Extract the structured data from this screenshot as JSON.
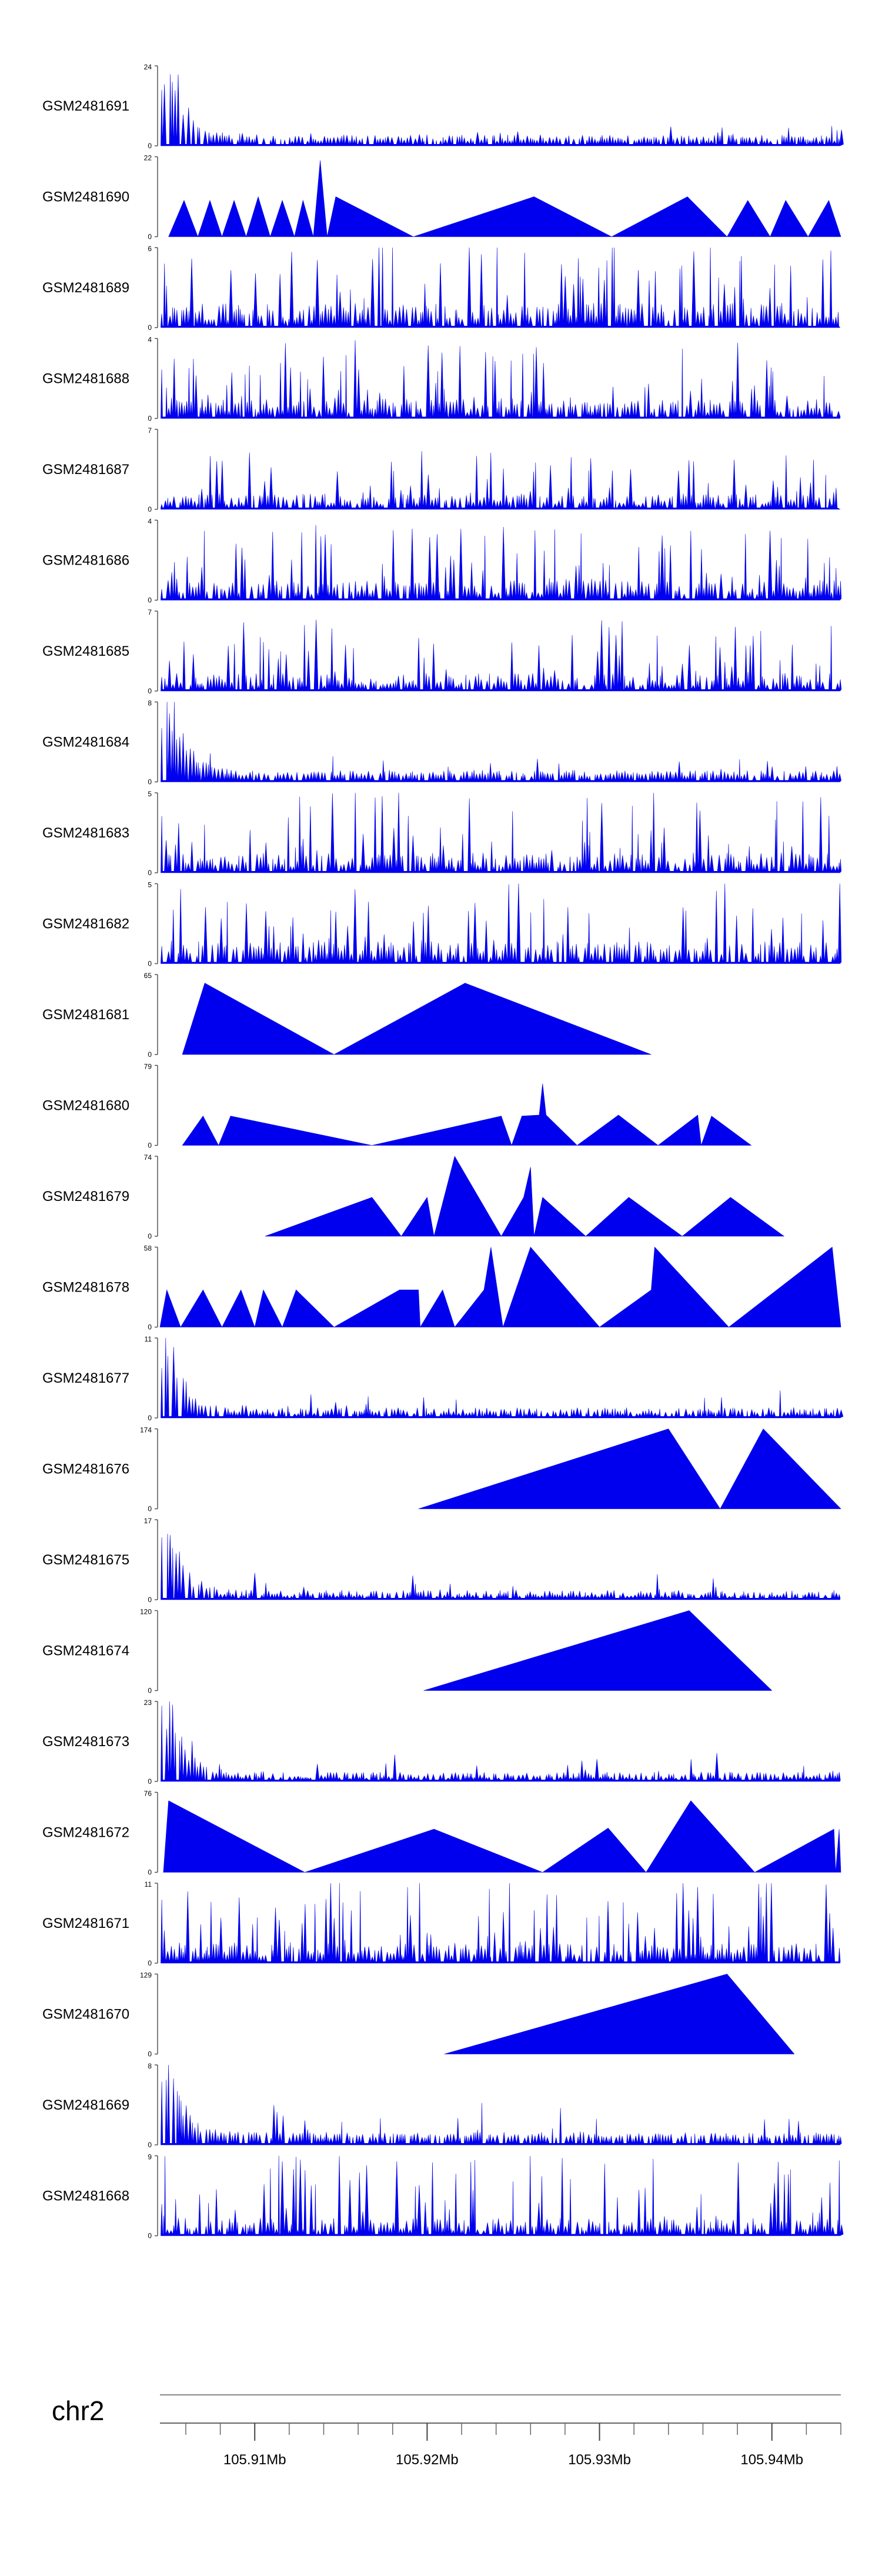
{
  "chart_data": {
    "type": "area",
    "title": "",
    "track_color": "#0000ee",
    "axis_color": "#555555",
    "x_range": [
      105.9045,
      105.944
    ],
    "chromosome": "chr2",
    "x_ticks": [
      {
        "value": 105.91,
        "label": "105.91Mb"
      },
      {
        "value": 105.92,
        "label": "105.92Mb"
      },
      {
        "value": 105.93,
        "label": "105.93Mb"
      },
      {
        "value": 105.94,
        "label": "105.94Mb"
      }
    ],
    "tracks": [
      {
        "name": "GSM2481691",
        "ymax": 24,
        "pattern": "front",
        "seed": 11,
        "peak_at": 105.9052,
        "base": 0.06,
        "spikes": 0.22
      },
      {
        "name": "GSM2481690",
        "ymax": 22,
        "pattern": "points",
        "points": [
          [
            105.905,
            0
          ],
          [
            105.9059,
            10
          ],
          [
            105.9067,
            0
          ],
          [
            105.9074,
            10
          ],
          [
            105.9081,
            0
          ],
          [
            105.9088,
            10
          ],
          [
            105.9095,
            0
          ],
          [
            105.9102,
            11
          ],
          [
            105.9109,
            0
          ],
          [
            105.9116,
            10
          ],
          [
            105.9123,
            0
          ],
          [
            105.9128,
            10
          ],
          [
            105.9134,
            0
          ],
          [
            105.9138,
            21
          ],
          [
            105.9142,
            0
          ],
          [
            105.9147,
            11
          ],
          [
            105.9192,
            0
          ],
          [
            105.9262,
            11
          ],
          [
            105.9307,
            0
          ],
          [
            105.9351,
            11
          ],
          [
            105.9374,
            0
          ],
          [
            105.9386,
            10
          ],
          [
            105.9399,
            0
          ],
          [
            105.9408,
            10
          ],
          [
            105.9421,
            0
          ],
          [
            105.9433,
            10
          ],
          [
            105.9446,
            0
          ]
        ]
      },
      {
        "name": "GSM2481689",
        "ymax": 6,
        "pattern": "dense",
        "seed": 21,
        "base": 0.22,
        "spikes": 0.85
      },
      {
        "name": "GSM2481688",
        "ymax": 4,
        "pattern": "dense",
        "seed": 32,
        "base": 0.18,
        "spikes": 0.75
      },
      {
        "name": "GSM2481687",
        "ymax": 7,
        "pattern": "dense",
        "seed": 43,
        "base": 0.14,
        "spikes": 0.6
      },
      {
        "name": "GSM2481686",
        "ymax": 4,
        "pattern": "dense",
        "seed": 54,
        "base": 0.18,
        "spikes": 0.75
      },
      {
        "name": "GSM2481685",
        "ymax": 7,
        "pattern": "dense",
        "seed": 65,
        "base": 0.16,
        "spikes": 0.7
      },
      {
        "name": "GSM2481684",
        "ymax": 8,
        "pattern": "front",
        "seed": 76,
        "peak_at": 105.9052,
        "base": 0.07,
        "spikes": 0.25
      },
      {
        "name": "GSM2481683",
        "ymax": 5,
        "pattern": "dense",
        "seed": 87,
        "base": 0.18,
        "spikes": 0.85
      },
      {
        "name": "GSM2481682",
        "ymax": 5,
        "pattern": "dense",
        "seed": 98,
        "base": 0.2,
        "spikes": 0.85
      },
      {
        "name": "GSM2481681",
        "ymax": 65,
        "pattern": "points",
        "points": [
          [
            105.9058,
            0
          ],
          [
            105.9071,
            58
          ],
          [
            105.9146,
            0
          ],
          [
            105.9222,
            58
          ],
          [
            105.933,
            0
          ]
        ]
      },
      {
        "name": "GSM2481680",
        "ymax": 79,
        "pattern": "points",
        "points": [
          [
            105.9058,
            0
          ],
          [
            105.907,
            29
          ],
          [
            105.9079,
            0
          ],
          [
            105.9086,
            29
          ],
          [
            105.9168,
            0
          ],
          [
            105.9243,
            29
          ],
          [
            105.9249,
            0
          ],
          [
            105.9255,
            29
          ],
          [
            105.9265,
            30
          ],
          [
            105.9267,
            61
          ],
          [
            105.9269,
            30
          ],
          [
            105.9287,
            0
          ],
          [
            105.9311,
            30
          ],
          [
            105.9334,
            0
          ],
          [
            105.9357,
            30
          ],
          [
            105.9359,
            0
          ],
          [
            105.9365,
            29
          ],
          [
            105.9388,
            0
          ]
        ]
      },
      {
        "name": "GSM2481679",
        "ymax": 74,
        "pattern": "points",
        "points": [
          [
            105.9106,
            0
          ],
          [
            105.9168,
            36
          ],
          [
            105.9185,
            0
          ],
          [
            105.92,
            36
          ],
          [
            105.9204,
            0
          ],
          [
            105.9216,
            74
          ],
          [
            105.9243,
            0
          ],
          [
            105.9256,
            36
          ],
          [
            105.926,
            64
          ],
          [
            105.9262,
            0
          ],
          [
            105.9267,
            36
          ],
          [
            105.9292,
            0
          ],
          [
            105.9317,
            36
          ],
          [
            105.9348,
            0
          ],
          [
            105.9376,
            36
          ],
          [
            105.9407,
            0
          ]
        ]
      },
      {
        "name": "GSM2481678",
        "ymax": 58,
        "pattern": "points",
        "points": [
          [
            105.9045,
            0
          ],
          [
            105.9049,
            27
          ],
          [
            105.9057,
            0
          ],
          [
            105.907,
            27
          ],
          [
            105.9081,
            0
          ],
          [
            105.9092,
            27
          ],
          [
            105.91,
            0
          ],
          [
            105.9105,
            27
          ],
          [
            105.9116,
            0
          ],
          [
            105.9124,
            27
          ],
          [
            105.9146,
            0
          ],
          [
            105.9184,
            27
          ],
          [
            105.9195,
            27
          ],
          [
            105.9196,
            0
          ],
          [
            105.9209,
            27
          ],
          [
            105.9216,
            0
          ],
          [
            105.9233,
            27
          ],
          [
            105.9237,
            58
          ],
          [
            105.9244,
            0
          ],
          [
            105.926,
            58
          ],
          [
            105.93,
            0
          ],
          [
            105.933,
            27
          ],
          [
            105.9332,
            58
          ],
          [
            105.9375,
            0
          ],
          [
            105.9435,
            58
          ],
          [
            105.9449,
            0
          ]
        ]
      },
      {
        "name": "GSM2481677",
        "ymax": 11,
        "pattern": "front",
        "seed": 109,
        "peak_at": 105.905,
        "base": 0.05,
        "spikes": 0.3
      },
      {
        "name": "GSM2481676",
        "ymax": 174,
        "pattern": "points",
        "points": [
          [
            105.9195,
            0
          ],
          [
            105.934,
            174
          ],
          [
            105.937,
            0
          ],
          [
            105.9395,
            174
          ],
          [
            105.9446,
            0
          ]
        ]
      },
      {
        "name": "GSM2481675",
        "ymax": 17,
        "pattern": "front",
        "seed": 120,
        "peak_at": 105.905,
        "base": 0.04,
        "spikes": 0.3
      },
      {
        "name": "GSM2481674",
        "ymax": 120,
        "pattern": "points",
        "points": [
          [
            105.9198,
            0
          ],
          [
            105.9352,
            120
          ],
          [
            105.94,
            0
          ]
        ]
      },
      {
        "name": "GSM2481673",
        "ymax": 23,
        "pattern": "front",
        "seed": 131,
        "peak_at": 105.9052,
        "base": 0.04,
        "spikes": 0.32
      },
      {
        "name": "GSM2481672",
        "ymax": 76,
        "pattern": "points",
        "points": [
          [
            105.9047,
            0
          ],
          [
            105.905,
            68
          ],
          [
            105.9129,
            0
          ],
          [
            105.9204,
            41
          ],
          [
            105.9267,
            0
          ],
          [
            105.9305,
            42
          ],
          [
            105.9327,
            0
          ],
          [
            105.9353,
            68
          ],
          [
            105.939,
            0
          ],
          [
            105.9436,
            41
          ],
          [
            105.9437,
            0
          ],
          [
            105.9439,
            41
          ],
          [
            105.9461,
            0
          ]
        ]
      },
      {
        "name": "GSM2481671",
        "ymax": 11,
        "pattern": "dense",
        "seed": 142,
        "base": 0.18,
        "spikes": 0.9
      },
      {
        "name": "GSM2481670",
        "ymax": 129,
        "pattern": "points",
        "points": [
          [
            105.921,
            0
          ],
          [
            105.9374,
            129
          ],
          [
            105.9413,
            0
          ]
        ]
      },
      {
        "name": "GSM2481669",
        "ymax": 8,
        "pattern": "front",
        "seed": 153,
        "peak_at": 105.905,
        "base": 0.08,
        "spikes": 0.45
      },
      {
        "name": "GSM2481668",
        "ymax": 9,
        "pattern": "dense",
        "seed": 164,
        "base": 0.16,
        "spikes": 0.9
      }
    ]
  }
}
